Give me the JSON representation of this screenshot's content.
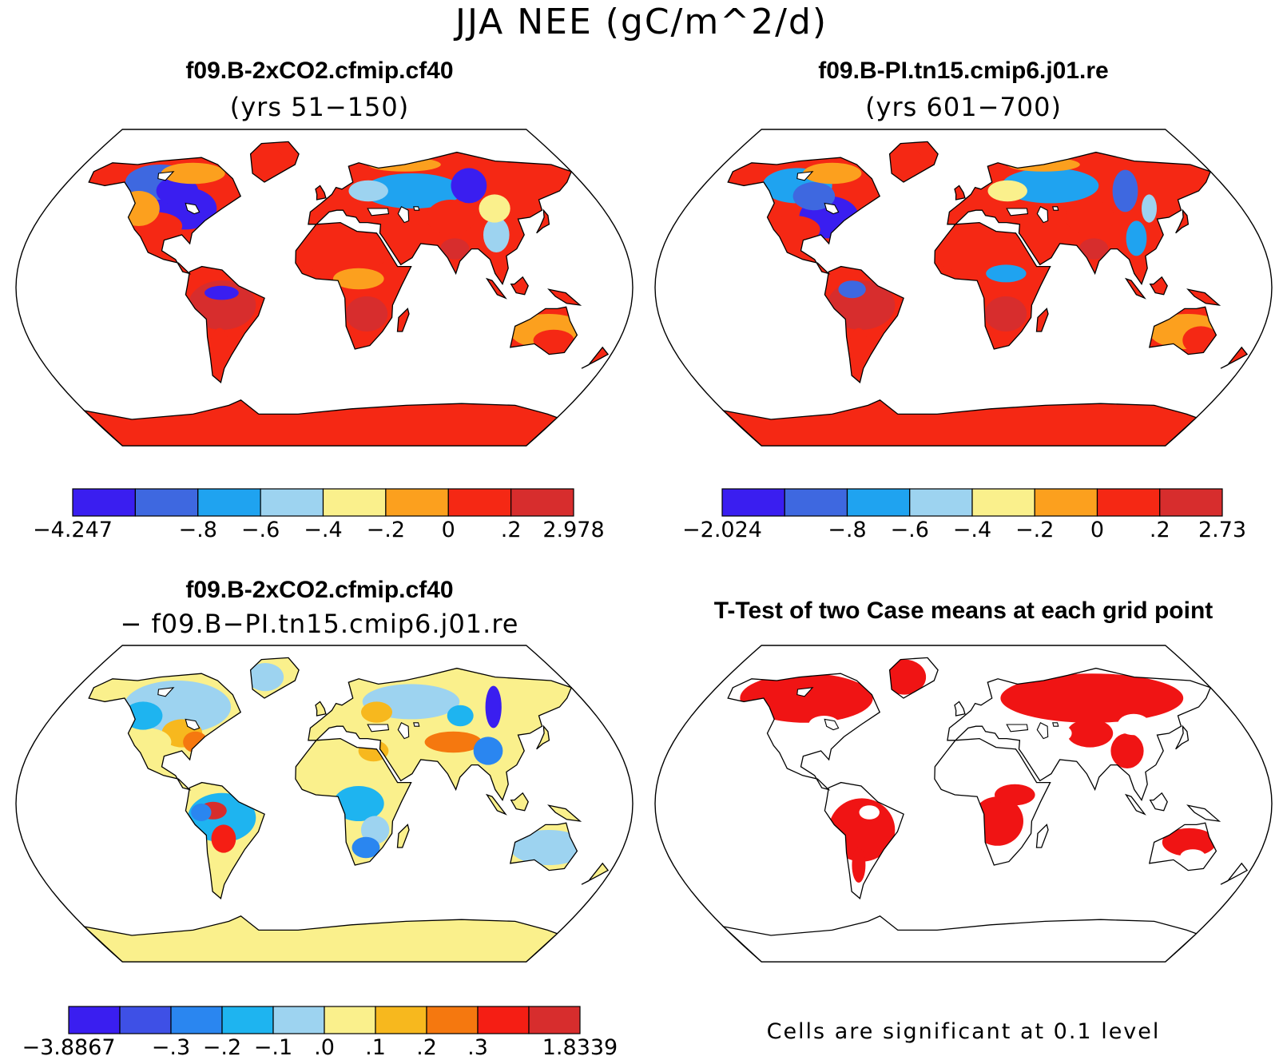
{
  "title": "JJA NEE (gC/m^2/d)",
  "panels": [
    {
      "case": "f09.B-2xCO2.cfmip.cf40",
      "subtitle": "(yrs 51−150)",
      "colors": [
        "#3a1ef0",
        "#3e68e0",
        "#1fa3f0",
        "#9dd3f0",
        "#faf08c",
        "#fca01e",
        "#f52814",
        "#d72d2d"
      ],
      "ticks": [
        {
          "i": 0,
          "label": "−4.247"
        },
        {
          "i": 2,
          "label": "−.8"
        },
        {
          "i": 3,
          "label": "−.6"
        },
        {
          "i": 4,
          "label": "−.4"
        },
        {
          "i": 5,
          "label": "−.2"
        },
        {
          "i": 6,
          "label": "0"
        },
        {
          "i": 7,
          "label": ".2"
        },
        {
          "i": 8,
          "label": "2.978"
        }
      ]
    },
    {
      "case": "f09.B-PI.tn15.cmip6.j01.re",
      "subtitle": "(yrs 601−700)",
      "colors": [
        "#3a1ef0",
        "#3e68e0",
        "#1fa3f0",
        "#9dd3f0",
        "#faf08c",
        "#fca01e",
        "#f52814",
        "#d72d2d"
      ],
      "ticks": [
        {
          "i": 0,
          "label": "−2.024"
        },
        {
          "i": 2,
          "label": "−.8"
        },
        {
          "i": 3,
          "label": "−.6"
        },
        {
          "i": 4,
          "label": "−.4"
        },
        {
          "i": 5,
          "label": "−.2"
        },
        {
          "i": 6,
          "label": "0"
        },
        {
          "i": 7,
          "label": ".2"
        },
        {
          "i": 8,
          "label": "2.73"
        }
      ]
    },
    {
      "case": "f09.B-2xCO2.cfmip.cf40",
      "subtitle": "− f09.B−PI.tn15.cmip6.j01.re",
      "colors": [
        "#3a1ef0",
        "#3e50e6",
        "#2a86f0",
        "#1eb4f0",
        "#9dd3f0",
        "#faf08c",
        "#f7b81e",
        "#f5780f",
        "#f51e14",
        "#d72d2d"
      ],
      "ticks": [
        {
          "i": 0,
          "label": "−3.8867"
        },
        {
          "i": 2,
          "label": "−.3"
        },
        {
          "i": 3,
          "label": "−.2"
        },
        {
          "i": 4,
          "label": "−.1"
        },
        {
          "i": 5,
          "label": ".0"
        },
        {
          "i": 6,
          "label": ".1"
        },
        {
          "i": 7,
          "label": ".2"
        },
        {
          "i": 8,
          "label": ".3"
        },
        {
          "i": 10,
          "label": "1.8339"
        }
      ]
    }
  ],
  "ttest": {
    "title": "T-Test of two Case means at each grid point",
    "note": "Cells are significant at 0.1 level",
    "color": "#f01414"
  }
}
